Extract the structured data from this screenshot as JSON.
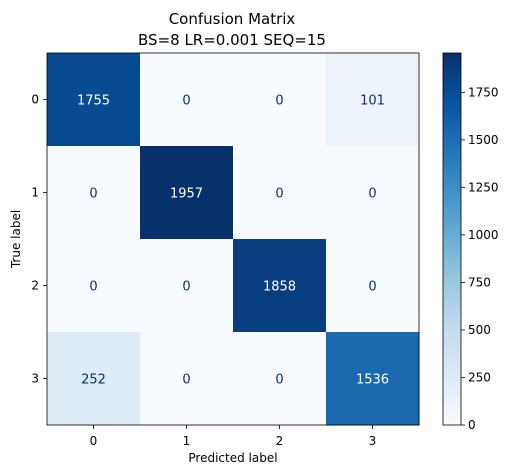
{
  "chart_data": {
    "type": "heatmap",
    "title": "Confusion Matrix",
    "subtitle": "BS=8 LR=0.001 SEQ=15",
    "xlabel": "Predicted label",
    "ylabel": "True label",
    "x_categories": [
      "0",
      "1",
      "2",
      "3"
    ],
    "y_categories": [
      "0",
      "1",
      "2",
      "3"
    ],
    "values": [
      [
        1755,
        0,
        0,
        101
      ],
      [
        0,
        1957,
        0,
        0
      ],
      [
        0,
        0,
        1858,
        0
      ],
      [
        252,
        0,
        0,
        1536
      ]
    ],
    "colorscale": "Blues",
    "vmin": 0,
    "vmax": 1957,
    "colorbar_ticks": [
      "0",
      "250",
      "500",
      "750",
      "1000",
      "1250",
      "1500",
      "1750"
    ]
  }
}
